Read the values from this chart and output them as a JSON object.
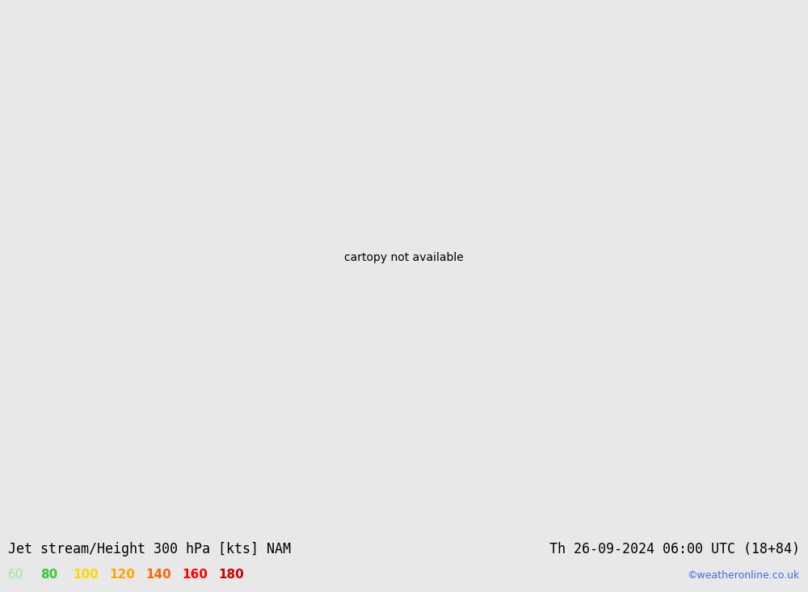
{
  "title_left": "Jet stream/Height 300 hPa [kts] NAM",
  "title_right": "Th 26-09-2024 06:00 UTC (18+84)",
  "credit": "©weatheronline.co.uk",
  "legend_values": [
    "60",
    "80",
    "100",
    "120",
    "140",
    "160",
    "180"
  ],
  "legend_colors": [
    "#90ee90",
    "#32cd32",
    "#ffd700",
    "#ffa500",
    "#ff6600",
    "#ff0000",
    "#cc0000"
  ],
  "background_color": "#e8e8e8",
  "map_bg_color": "#e0e0e0",
  "land_color": "#d2d2c0",
  "ocean_color": "#e8e8e8",
  "text_color": "#000000",
  "title_fontsize": 12,
  "legend_fontsize": 11,
  "credit_color": "#4169e1",
  "contour_color": "#000000",
  "state_line_color": "#9090b0",
  "coast_line_color": "#a0a0a0"
}
